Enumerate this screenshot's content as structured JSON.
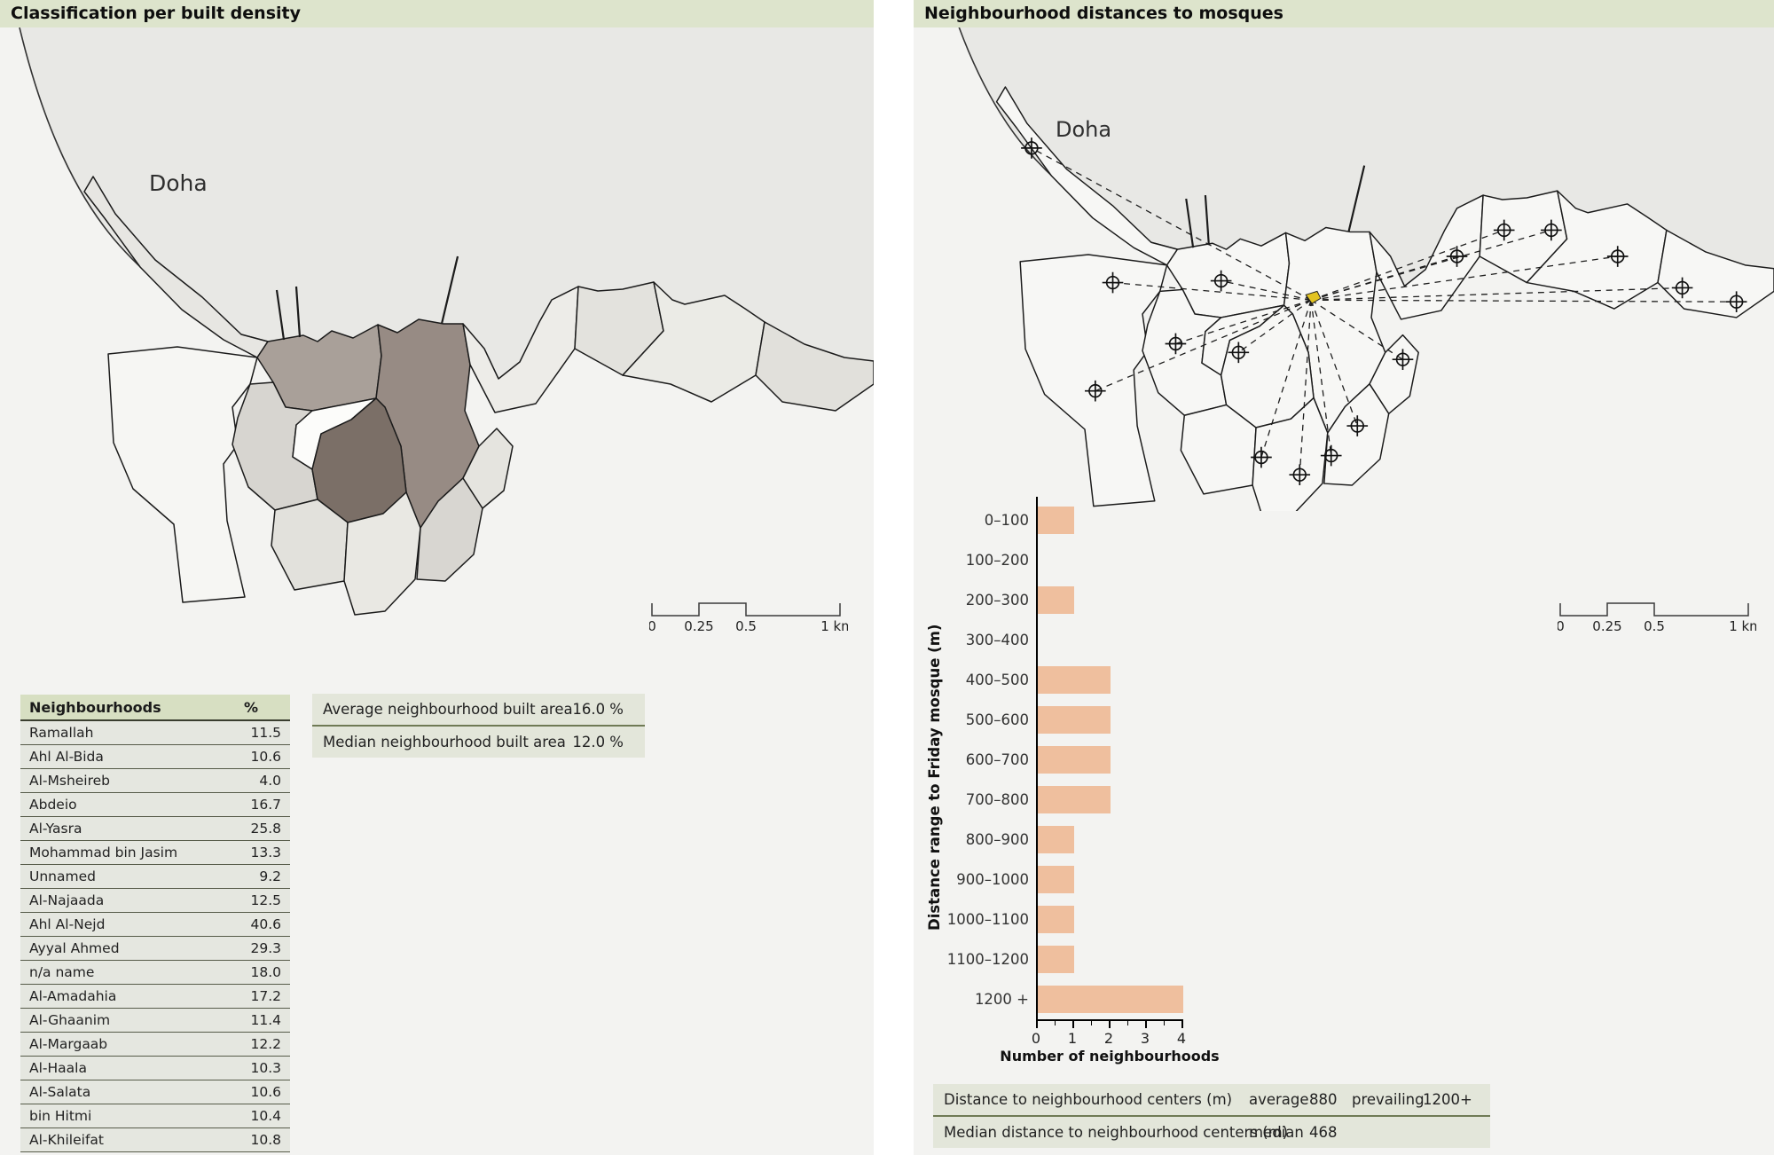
{
  "left_panel": {
    "header": "Classification per built density",
    "map_label": "Doha",
    "table": {
      "col_name": "Neighbourhoods",
      "col_pct": "%",
      "rows": [
        {
          "name": "Ramallah",
          "pct": "11.5"
        },
        {
          "name": "Ahl Al-Bida",
          "pct": "10.6"
        },
        {
          "name": "Al-Msheireb",
          "pct": "4.0"
        },
        {
          "name": "Abdeio",
          "pct": "16.7"
        },
        {
          "name": "Al-Yasra",
          "pct": "25.8"
        },
        {
          "name": "Mohammad bin Jasim",
          "pct": "13.3"
        },
        {
          "name": "Unnamed",
          "pct": "9.2"
        },
        {
          "name": "Al-Najaada",
          "pct": "12.5"
        },
        {
          "name": "Ahl Al-Nejd",
          "pct": "40.6"
        },
        {
          "name": "Ayyal Ahmed",
          "pct": "29.3"
        },
        {
          "name": "n/a name",
          "pct": "18.0"
        },
        {
          "name": "Al-Amadahia",
          "pct": "17.2"
        },
        {
          "name": "Al-Ghaanim",
          "pct": "11.4"
        },
        {
          "name": "Al-Margaab",
          "pct": "12.2"
        },
        {
          "name": "Al-Haala",
          "pct": "10.3"
        },
        {
          "name": "Al-Salata",
          "pct": "10.6"
        },
        {
          "name": "bin Hitmi",
          "pct": "10.4"
        },
        {
          "name": "Al-Khileifat",
          "pct": "10.8"
        }
      ]
    },
    "summary": [
      {
        "label": "Average neighbourhood built area",
        "value": "16.0 %"
      },
      {
        "label": "Median neighbourhood built area",
        "value": "12.0 %"
      }
    ]
  },
  "right_panel": {
    "header": "Neighbourhood distances to mosques",
    "map_label": "Doha",
    "summary": {
      "row1": {
        "label": "Distance to neighbourhood centers (m)",
        "key1": "average",
        "val1": "880",
        "key2": "prevailing",
        "val2": "1200+"
      },
      "row2": {
        "label": "Median distance to neighbourhood centers (m)",
        "key1": "median",
        "val1": "468"
      }
    }
  },
  "scalebar": {
    "t0": "0",
    "t1": "0.25",
    "t2": "0.5",
    "t3": "1 km"
  },
  "chart_data": {
    "type": "bar",
    "orientation": "horizontal",
    "title": "Neighbourhood distances to mosques",
    "categories": [
      "0–100",
      "100–200",
      "200–300",
      "300–400",
      "400–500",
      "500–600",
      "600–700",
      "700–800",
      "800–900",
      "900–1000",
      "1000–1100",
      "1100–1200",
      "1200 +"
    ],
    "values": [
      1,
      0,
      1,
      0,
      2,
      2,
      2,
      2,
      1,
      1,
      1,
      1,
      4
    ],
    "xlabel": "Number of neighbourhoods",
    "ylabel": "Distance range to Friday mosque (m)",
    "xlim": [
      0,
      4
    ],
    "x_ticks": [
      0,
      1,
      2,
      3,
      4
    ],
    "bar_color": "#efbf9e",
    "legend": []
  },
  "colors": {
    "header_bg": "#dde4cc",
    "panel_bg": "#f3f3f1",
    "sea": "#e8e8e5",
    "bar": "#efbf9e",
    "mosque": "#e2c322",
    "table_header_bg": "#d7dfc2",
    "table_row_bg": "#e5e7e0",
    "summary_bg": "#e3e6da",
    "density_darkest": "#7b6f67"
  }
}
